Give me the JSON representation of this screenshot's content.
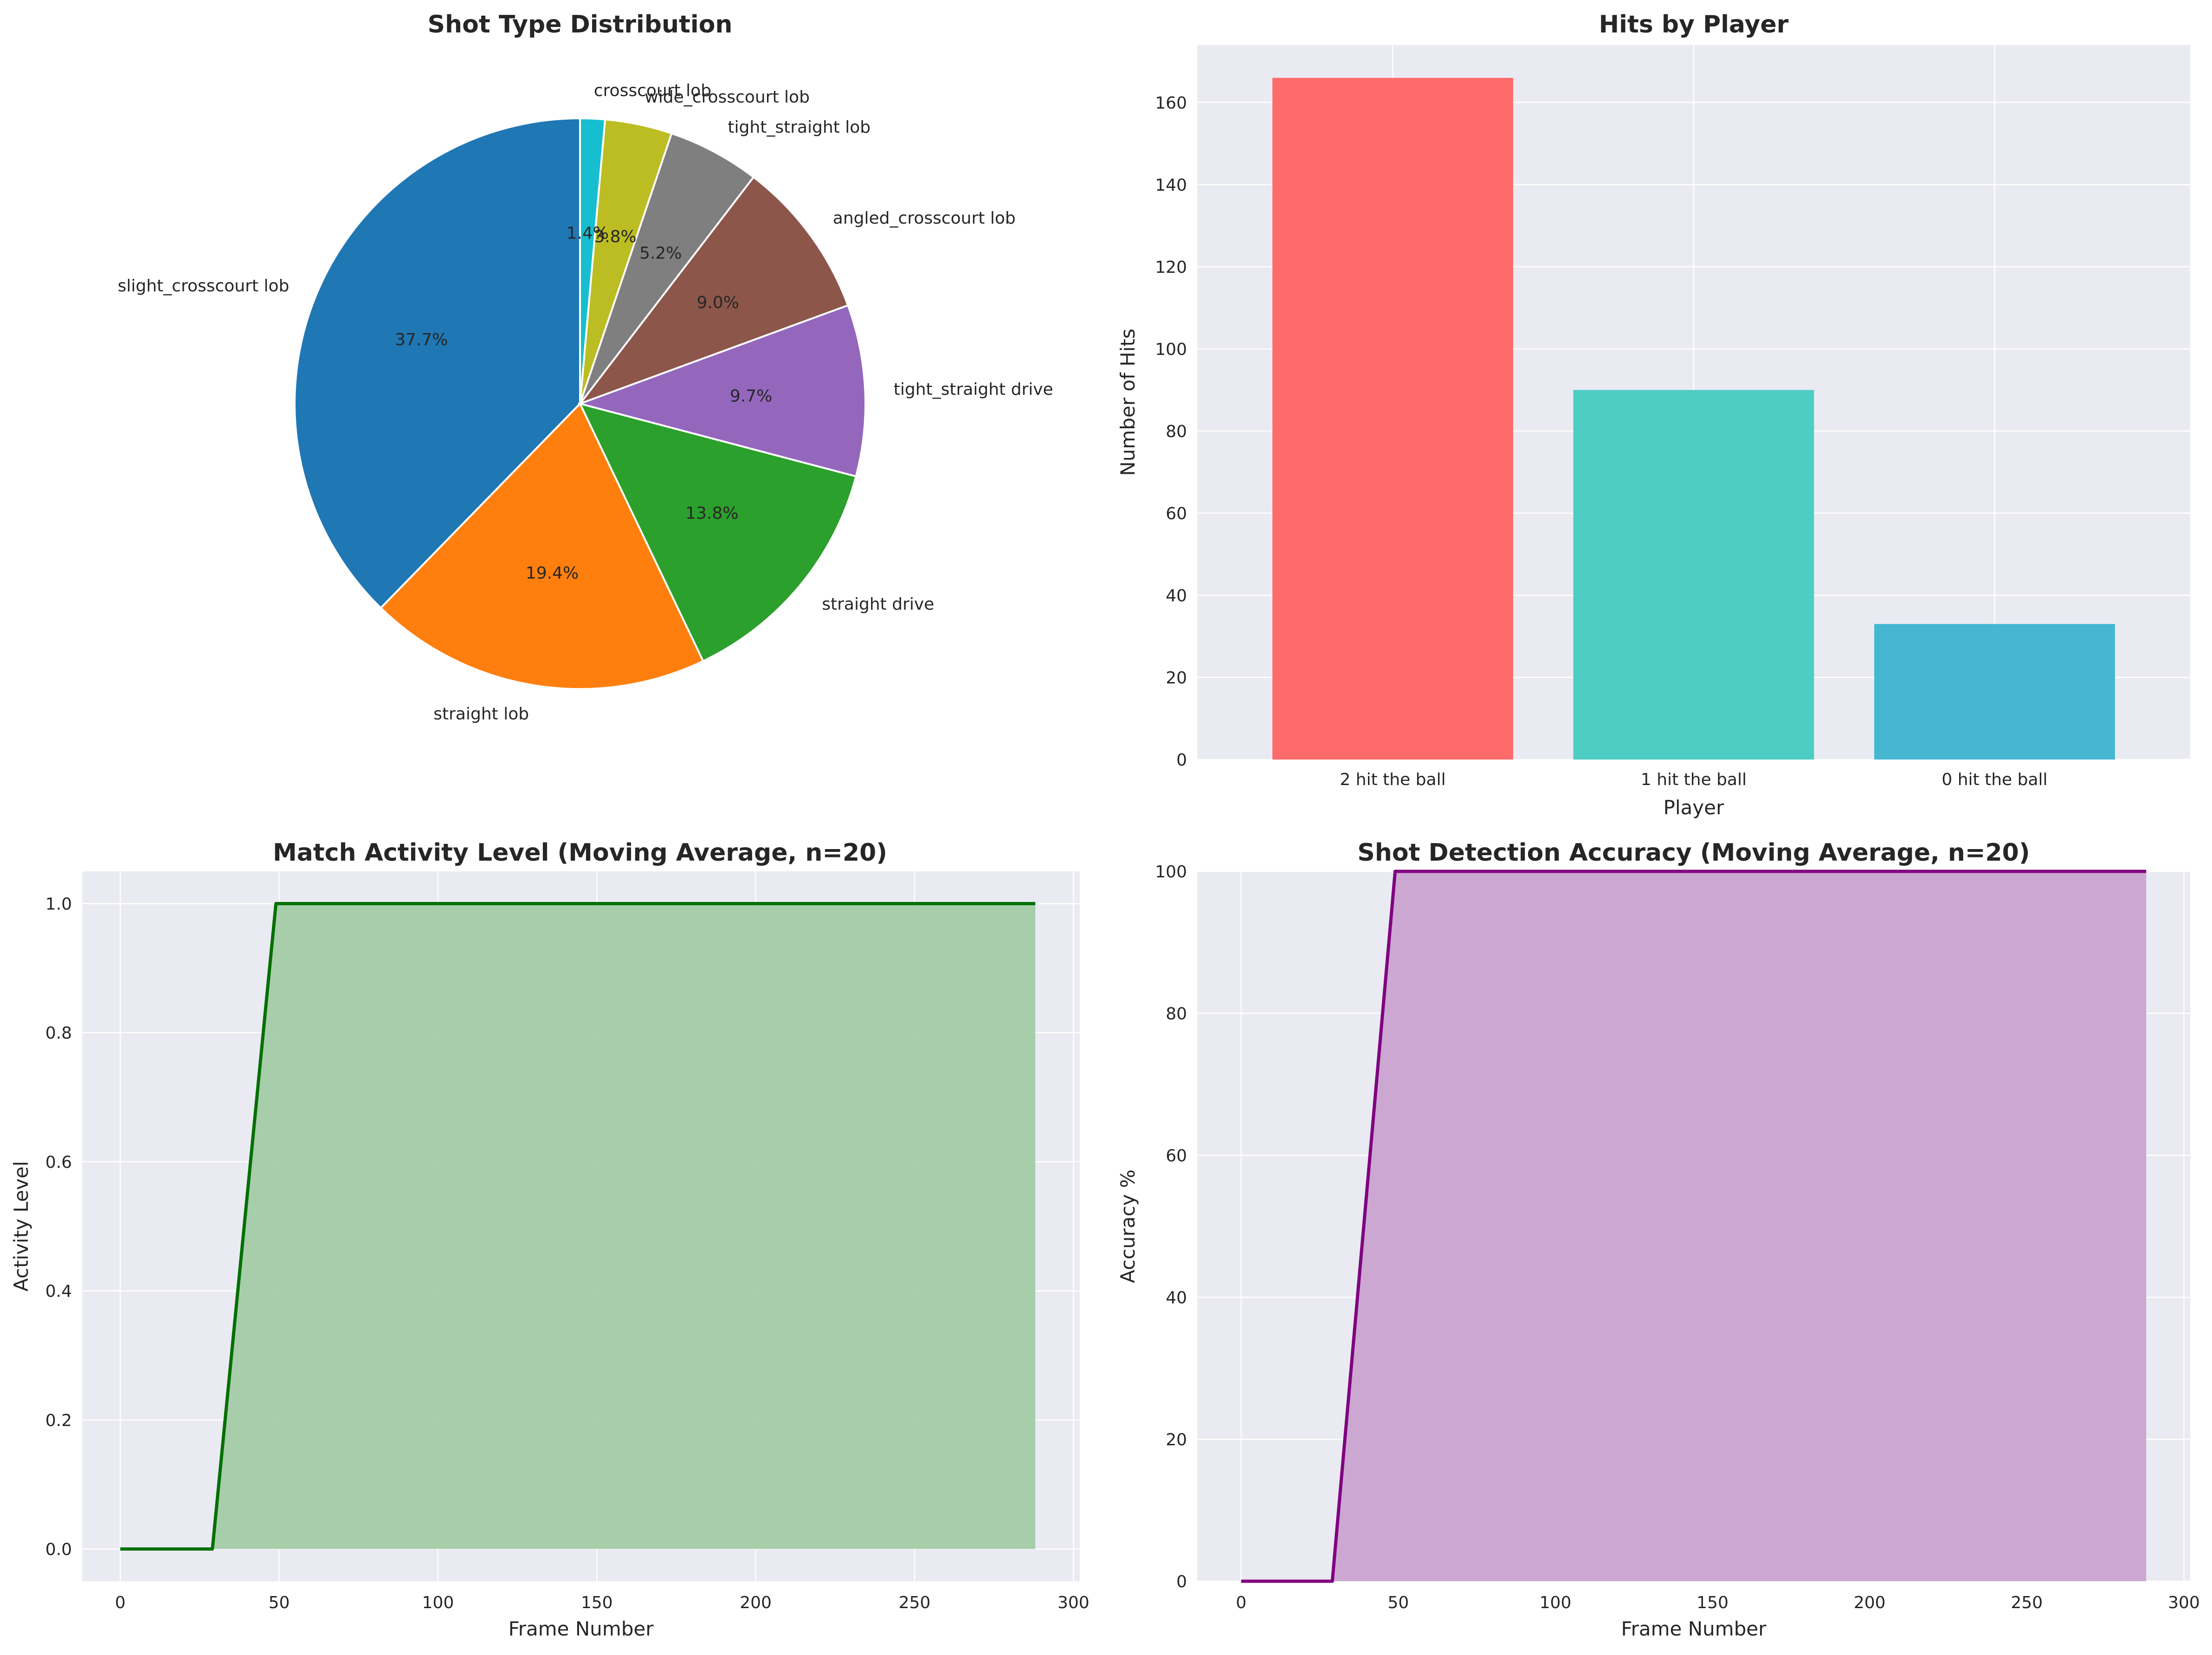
{
  "chart_data": [
    {
      "type": "pie",
      "title": "Shot Type Distribution",
      "labels": [
        "slight_crosscourt lob",
        "straight lob",
        "straight drive",
        "tight_straight drive",
        "angled_crosscourt lob",
        "tight_straight lob",
        "wide_crosscourt lob",
        "crosscourt lob"
      ],
      "values": [
        37.7,
        19.4,
        13.8,
        9.7,
        9.0,
        5.2,
        3.8,
        1.4
      ],
      "pct_labels": [
        "37.7%",
        "19.4%",
        "13.8%",
        "9.7%",
        "9.0%",
        "5.2%",
        "3.8%",
        "1.4%"
      ],
      "colors": [
        "#1f77b4",
        "#ff7f0e",
        "#2ca02c",
        "#9467bd",
        "#8c564b",
        "#7f7f7f",
        "#bcbd22",
        "#17becf"
      ],
      "start_angle": 90
    },
    {
      "type": "bar",
      "title": "Hits by Player",
      "categories": [
        "2 hit the ball",
        "1 hit the ball",
        "0 hit the ball"
      ],
      "values": [
        166,
        90,
        33
      ],
      "colors": [
        "#ff6b6b",
        "#4ecdc4",
        "#45b7d1"
      ],
      "xlabel": "Player",
      "ylabel": "Number of Hits",
      "ylim": [
        0,
        174
      ],
      "yticks": [
        0,
        20,
        40,
        60,
        80,
        100,
        120,
        140,
        160
      ],
      "grid": true
    },
    {
      "type": "area",
      "title": "Match Activity Level (Moving Average, n=20)",
      "x": [
        0,
        29,
        49,
        288
      ],
      "y": [
        0,
        0,
        1.0,
        1.0
      ],
      "fill_from_x": 29,
      "line_color": "#007000",
      "fill_color": "#a3cba7",
      "xlabel": "Frame Number",
      "ylabel": "Activity Level",
      "xlim": [
        -12,
        302
      ],
      "ylim": [
        -0.05,
        1.05
      ],
      "xticks": [
        0,
        50,
        100,
        150,
        200,
        250,
        300
      ],
      "yticks": [
        0.0,
        0.2,
        0.4,
        0.6,
        0.8,
        1.0
      ],
      "ytick_labels": [
        "0.0",
        "0.2",
        "0.4",
        "0.6",
        "0.8",
        "1.0"
      ],
      "grid": true
    },
    {
      "type": "area",
      "title": "Shot Detection Accuracy (Moving Average, n=20)",
      "x": [
        0,
        29,
        49,
        288
      ],
      "y": [
        0,
        0,
        100,
        100
      ],
      "fill_from_x": 29,
      "line_color": "#800080",
      "fill_color": "#c9a3cf",
      "xlabel": "Frame Number",
      "ylabel": "Accuracy %",
      "xlim": [
        -14,
        302
      ],
      "ylim": [
        0,
        100
      ],
      "xticks": [
        0,
        50,
        100,
        150,
        200,
        250,
        300
      ],
      "yticks": [
        0,
        20,
        40,
        60,
        80,
        100
      ],
      "grid": true
    }
  ]
}
